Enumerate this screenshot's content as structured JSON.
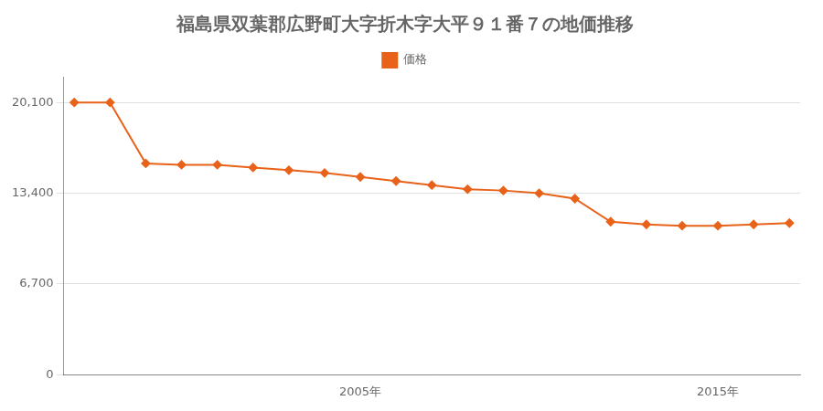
{
  "chart_data": {
    "type": "line",
    "title": "福島県双葉郡広野町大字折木字大平９１番７の地価推移",
    "x": [
      1997,
      1998,
      1999,
      2000,
      2001,
      2002,
      2003,
      2004,
      2005,
      2006,
      2007,
      2008,
      2009,
      2010,
      2011,
      2012,
      2013,
      2014,
      2015,
      2016,
      2017
    ],
    "series": [
      {
        "name": "価格",
        "color": "#e8621a",
        "marker": "diamond",
        "line_style": "solid",
        "values": [
          20100,
          20100,
          15600,
          15500,
          15500,
          15300,
          15100,
          14900,
          14600,
          14300,
          14000,
          13700,
          13600,
          13400,
          13000,
          11300,
          11100,
          11000,
          11000,
          11100,
          11200
        ]
      }
    ],
    "xlim": [
      1996.7,
      2017.3
    ],
    "xticks": [
      {
        "value": 2005,
        "label": "2005年"
      },
      {
        "value": 2015,
        "label": "2015年"
      }
    ],
    "ylim": [
      0,
      22000
    ],
    "yticks": [
      0,
      {
        "value": 6700,
        "label": "6,700"
      },
      {
        "value": 13400,
        "label": "13,400"
      },
      {
        "value": 20100,
        "label": "20,100"
      }
    ],
    "grid": "y",
    "legend": "top"
  }
}
